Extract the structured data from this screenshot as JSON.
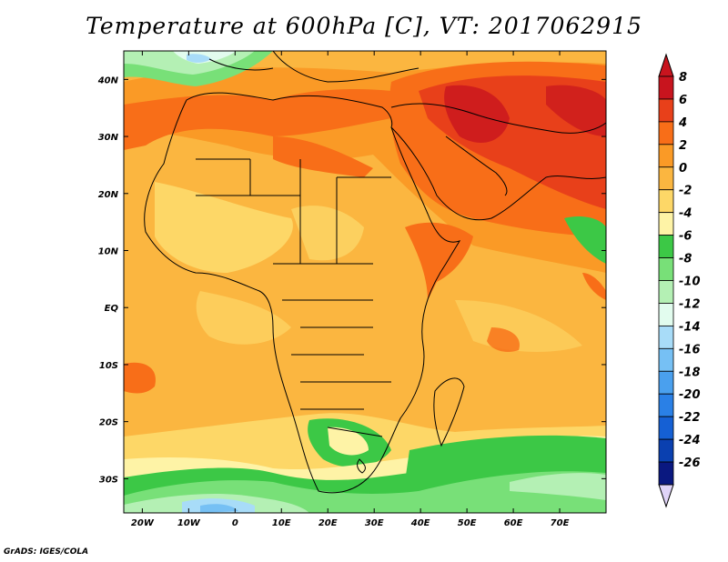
{
  "title": "Temperature at 600hPa [C], VT: 2017062915",
  "credit": "GrADS: IGES/COLA",
  "map": {
    "lon_range": [
      -24,
      80
    ],
    "lat_range": [
      -36,
      45
    ],
    "lon_ticks": [
      {
        "value": -20,
        "label": "20W"
      },
      {
        "value": -10,
        "label": "10W"
      },
      {
        "value": 0,
        "label": "0"
      },
      {
        "value": 10,
        "label": "10E"
      },
      {
        "value": 20,
        "label": "20E"
      },
      {
        "value": 30,
        "label": "30E"
      },
      {
        "value": 40,
        "label": "40E"
      },
      {
        "value": 50,
        "label": "50E"
      },
      {
        "value": 60,
        "label": "60E"
      },
      {
        "value": 70,
        "label": "70E"
      }
    ],
    "lat_ticks": [
      {
        "value": 40,
        "label": "40N"
      },
      {
        "value": 30,
        "label": "30N"
      },
      {
        "value": 20,
        "label": "20N"
      },
      {
        "value": 10,
        "label": "10N"
      },
      {
        "value": 0,
        "label": "EQ"
      },
      {
        "value": -10,
        "label": "10S"
      },
      {
        "value": -20,
        "label": "20S"
      },
      {
        "value": -30,
        "label": "30S"
      }
    ]
  },
  "colorbar": {
    "levels": [
      {
        "label": "8",
        "color": "#c8141e"
      },
      {
        "label": "6",
        "color": "#e8401a"
      },
      {
        "label": "4",
        "color": "#f86e18"
      },
      {
        "label": "2",
        "color": "#fa9a26"
      },
      {
        "label": "0",
        "color": "#fbb640"
      },
      {
        "label": "-2",
        "color": "#fdd767"
      },
      {
        "label": "-4",
        "color": "#fef3a6"
      },
      {
        "label": "-6",
        "color": "#3cc846"
      },
      {
        "label": "-8",
        "color": "#78e078"
      },
      {
        "label": "-10",
        "color": "#b4f0b4"
      },
      {
        "label": "-12",
        "color": "#e2fcee"
      },
      {
        "label": "-14",
        "color": "#a8dcf8"
      },
      {
        "label": "-16",
        "color": "#76c0f4"
      },
      {
        "label": "-18",
        "color": "#4aa0ee"
      },
      {
        "label": "-20",
        "color": "#2a80e6"
      },
      {
        "label": "-22",
        "color": "#1560d4"
      },
      {
        "label": "-24",
        "color": "#0a40b0"
      },
      {
        "label": "-26",
        "color": "#0a1880"
      }
    ],
    "under_color": "#e0d4f8"
  }
}
